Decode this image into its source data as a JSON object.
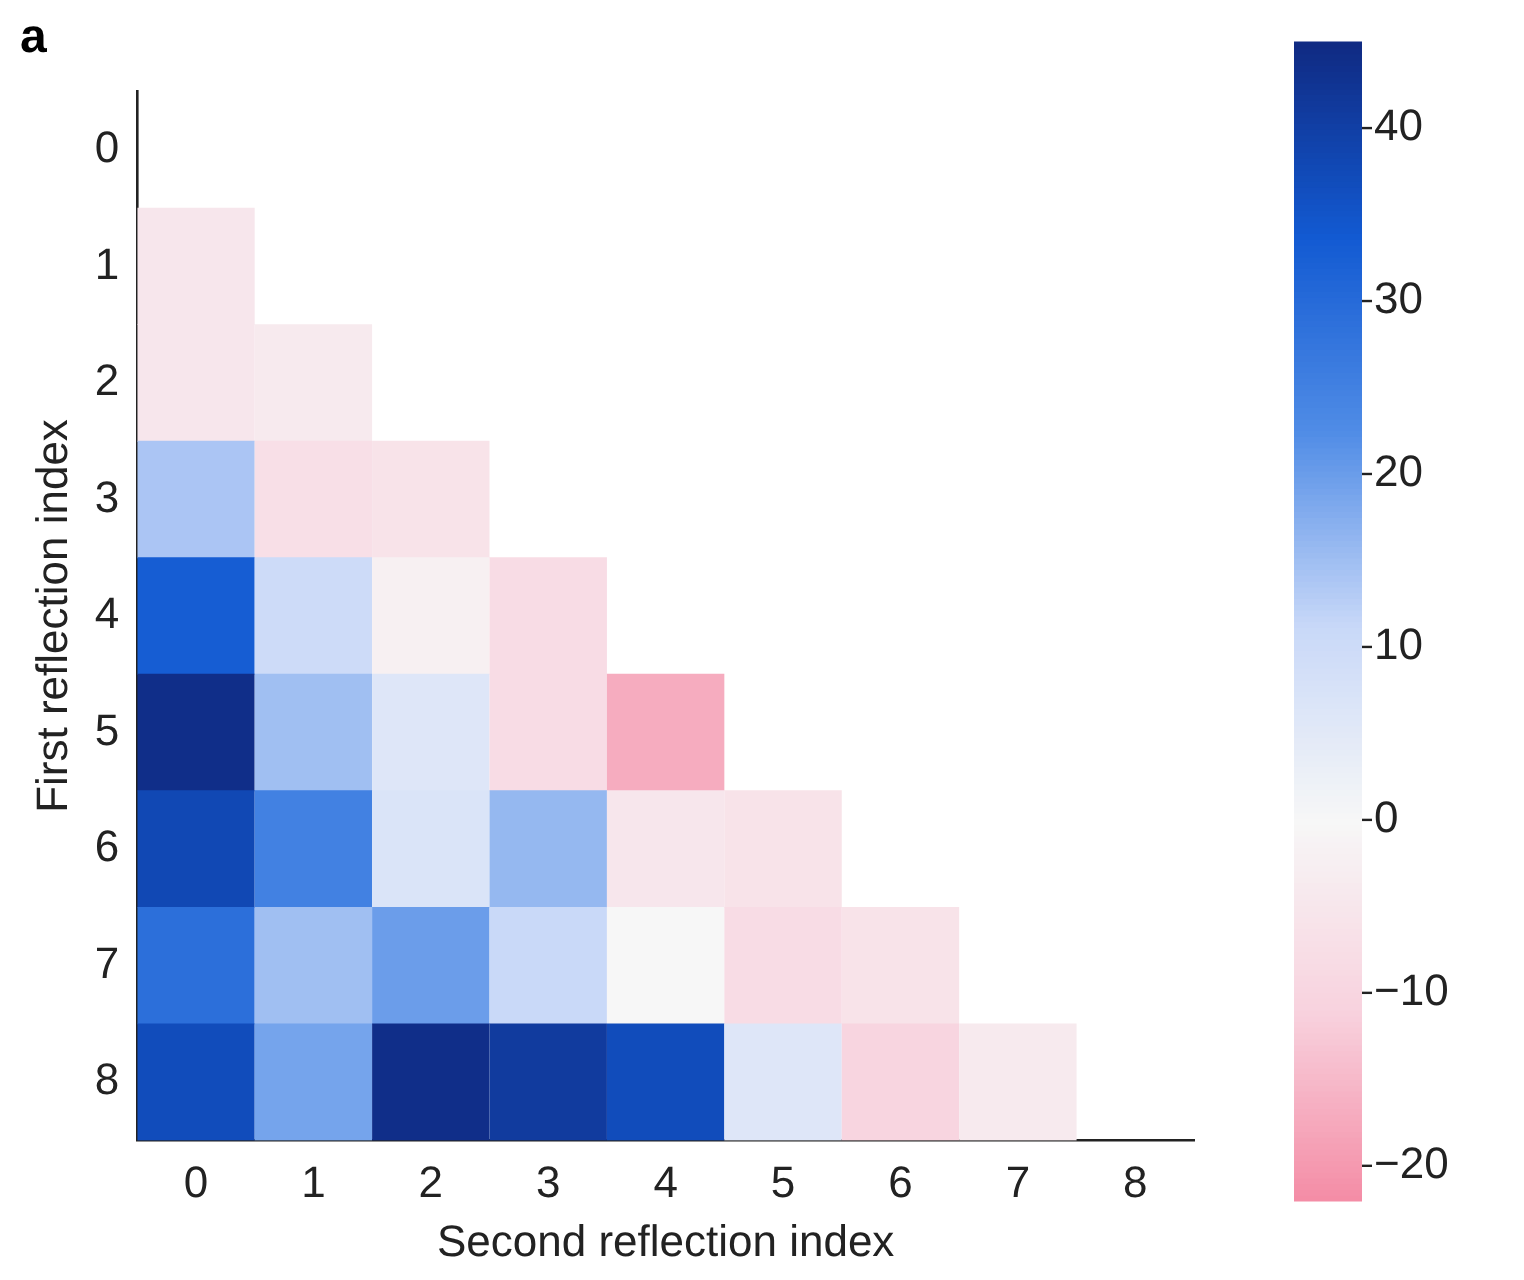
{
  "chart_data": {
    "type": "heatmap",
    "title": "a",
    "xlabel": "Second reflection index",
    "ylabel": "First reflection index",
    "categories": [
      "0",
      "1",
      "2",
      "3",
      "4",
      "5",
      "6",
      "7",
      "8"
    ],
    "y_categories": [
      "0",
      "1",
      "2",
      "3",
      "4",
      "5",
      "6",
      "7",
      "8"
    ],
    "cells": [
      [
        null,
        null,
        null,
        null,
        null,
        null,
        null,
        null,
        null
      ],
      [
        -5,
        null,
        null,
        null,
        null,
        null,
        null,
        null,
        null
      ],
      [
        -5,
        -4,
        null,
        null,
        null,
        null,
        null,
        null,
        null
      ],
      [
        14,
        -7,
        -6,
        null,
        null,
        null,
        null,
        null,
        null
      ],
      [
        33,
        10,
        -2,
        -8,
        null,
        null,
        null,
        null,
        null
      ],
      [
        44,
        15,
        6,
        -8,
        -17,
        null,
        null,
        null,
        null
      ],
      [
        38,
        25,
        7,
        16,
        -5,
        -6,
        null,
        null,
        null
      ],
      [
        29,
        15,
        20,
        11,
        0,
        -8,
        -6,
        null,
        null
      ],
      [
        37,
        19,
        44,
        41,
        37,
        6,
        -10,
        -4,
        null
      ]
    ],
    "clim": [
      -22,
      45
    ],
    "cticks": [
      {
        "value": 40,
        "label": "40"
      },
      {
        "value": 30,
        "label": "30"
      },
      {
        "value": 20,
        "label": "20"
      },
      {
        "value": 10,
        "label": "10"
      },
      {
        "value": 0,
        "label": "0"
      },
      {
        "value": -10,
        "label": "−10"
      },
      {
        "value": -20,
        "label": "−20"
      }
    ],
    "grid": false
  }
}
